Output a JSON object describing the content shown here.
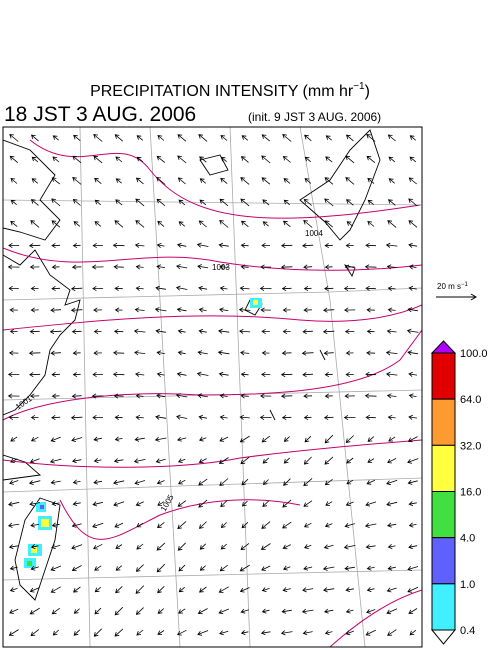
{
  "header": {
    "title": "PRECIPITATION INTENSITY (mm hr",
    "title_superscript": "−1",
    "title_close": ")",
    "valid_time": "18 JST 3 AUG. 2006",
    "init_time": "(init. 9 JST 3 AUG. 2006)"
  },
  "wind_scale": {
    "label": "20 m s",
    "label_superscript": "−1"
  },
  "isobars": [
    {
      "label": "1004"
    },
    {
      "label": "1003"
    },
    {
      "label": "1001"
    },
    {
      "label": "1005"
    }
  ],
  "colorbar": {
    "labels": [
      "100.0",
      "64.0",
      "32.0",
      "16.0",
      "4.0",
      "1.0",
      "0.4"
    ],
    "colors": [
      "#e00000",
      "#ff9a30",
      "#ffff40",
      "#40e040",
      "#6060ff",
      "#40f0ff"
    ],
    "top_color": "#b000ff",
    "bottom_color": "#ffffff"
  }
}
